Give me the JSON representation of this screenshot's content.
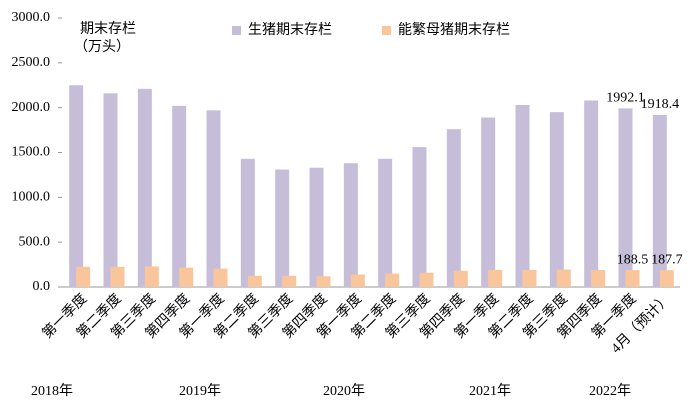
{
  "chart_data": {
    "type": "bar",
    "ylabel": [
      "期末存栏",
      "（万头）"
    ],
    "categories": [
      "第一季度",
      "第二季度",
      "第三季度",
      "第四季度",
      "第一季度",
      "第二季度",
      "第三季度",
      "第四季度",
      "第一季度",
      "第二季度",
      "第三季度",
      "第四季度",
      "第一季度",
      "第二季度",
      "第三季度",
      "第四季度",
      "第一季度",
      "4月（预计）"
    ],
    "groups": [
      "2018年",
      "2019年",
      "2020年",
      "2021年",
      "2022年"
    ],
    "series": [
      {
        "name": "生猪期末存栏",
        "color": "#c6bdd9",
        "values": [
          2250,
          2160,
          2210,
          2020,
          1970,
          1430,
          1310,
          1330,
          1380,
          1430,
          1560,
          1760,
          1890,
          2030,
          1950,
          2080,
          1992.1,
          1918.4
        ],
        "value_labels": [
          null,
          null,
          null,
          null,
          null,
          null,
          null,
          null,
          null,
          null,
          null,
          null,
          null,
          null,
          null,
          null,
          "1992.1",
          "1918.4"
        ]
      },
      {
        "name": "能繁母猪期末存栏",
        "color": "#f9c69c",
        "values": [
          225,
          225,
          230,
          215,
          205,
          125,
          125,
          120,
          140,
          150,
          160,
          180,
          190,
          190,
          195,
          190,
          188.5,
          187.7
        ],
        "value_labels": [
          null,
          null,
          null,
          null,
          null,
          null,
          null,
          null,
          null,
          null,
          null,
          null,
          null,
          null,
          null,
          null,
          "188.5",
          "187.7"
        ]
      }
    ],
    "ylim": [
      0,
      3000
    ],
    "yticks": [
      {
        "value": 0,
        "label": "0.0"
      },
      {
        "value": 500,
        "label": "500.0"
      },
      {
        "value": 1000,
        "label": "1000.0"
      },
      {
        "value": 1500,
        "label": "1500.0"
      },
      {
        "value": 2000,
        "label": "2000.0"
      },
      {
        "value": 2500,
        "label": "2500.0"
      },
      {
        "value": 3000,
        "label": "3000.0"
      }
    ]
  }
}
